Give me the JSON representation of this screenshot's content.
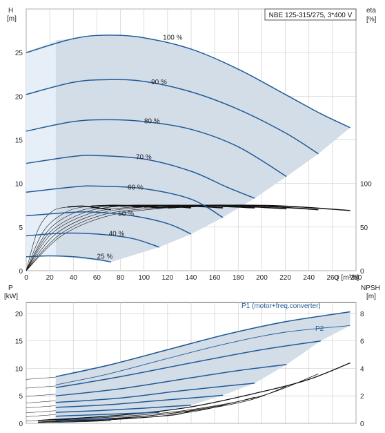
{
  "chart_data": [
    {
      "type": "line",
      "title": "NBE 125-315/275, 3*400 V",
      "left_axis": {
        "label_line1": "H",
        "label_line2": "[m]",
        "range": [
          0,
          30
        ],
        "ticks": [
          0,
          5,
          10,
          15,
          20,
          25
        ]
      },
      "right_axis": {
        "label_line1": "eta",
        "label_line2": "[%]",
        "range": [
          0,
          100
        ],
        "ticks": [
          0,
          50,
          100
        ]
      },
      "x_axis": {
        "label": "Q [m³/h]",
        "range": [
          0,
          280
        ],
        "ticks": [
          0,
          20,
          40,
          60,
          80,
          100,
          120,
          140,
          160,
          180,
          200,
          220,
          240,
          260,
          280
        ]
      },
      "grid": true,
      "head_curves": [
        {
          "name": "100 %",
          "x": [
            0,
            40,
            70,
            100,
            140,
            180,
            220,
            250,
            275
          ],
          "y": [
            25.0,
            26.6,
            27.0,
            26.7,
            25.4,
            23.1,
            20.2,
            18.0,
            16.4
          ]
        },
        {
          "name": "90 %",
          "x": [
            0,
            40,
            70,
            100,
            140,
            180,
            220,
            248
          ],
          "y": [
            20.2,
            21.6,
            21.9,
            21.7,
            20.5,
            18.5,
            15.8,
            13.4
          ]
        },
        {
          "name": "80 %",
          "x": [
            0,
            40,
            70,
            100,
            140,
            180,
            221
          ],
          "y": [
            16.0,
            17.1,
            17.3,
            17.1,
            16.2,
            14.2,
            10.8
          ]
        },
        {
          "name": "70 %",
          "x": [
            0,
            40,
            60,
            100,
            140,
            170,
            194
          ],
          "y": [
            12.3,
            13.1,
            13.2,
            12.8,
            11.4,
            9.6,
            8.3
          ]
        },
        {
          "name": "60 %",
          "x": [
            0,
            40,
            60,
            100,
            140,
            167
          ],
          "y": [
            9.0,
            9.6,
            9.7,
            9.4,
            8.2,
            6.1
          ]
        },
        {
          "name": "50 %",
          "x": [
            0,
            40,
            60,
            90,
            120,
            140
          ],
          "y": [
            6.3,
            6.7,
            6.7,
            6.3,
            5.4,
            4.2
          ]
        },
        {
          "name": "40 %",
          "x": [
            0,
            30,
            60,
            90,
            113
          ],
          "y": [
            4.0,
            4.3,
            4.2,
            3.7,
            2.7
          ]
        },
        {
          "name": "25 %",
          "x": [
            0,
            20,
            40,
            60,
            72
          ],
          "y": [
            1.6,
            1.7,
            1.6,
            1.3,
            1.0
          ]
        }
      ],
      "efficiency_curves": [
        {
          "x": [
            0,
            30,
            70,
            120,
            170,
            220,
            275
          ],
          "y": [
            0,
            40,
            63,
            72,
            75,
            74,
            69
          ]
        },
        {
          "x": [
            0,
            28,
            65,
            110,
            155,
            200,
            248
          ],
          "y": [
            0,
            41,
            64,
            72,
            75,
            74,
            70
          ]
        },
        {
          "x": [
            0,
            25,
            60,
            100,
            140,
            180,
            221
          ],
          "y": [
            0,
            42,
            65,
            73,
            75,
            74,
            71
          ]
        },
        {
          "x": [
            0,
            22,
            55,
            90,
            125,
            160,
            194
          ],
          "y": [
            0,
            43,
            66,
            73,
            75,
            74,
            72
          ]
        },
        {
          "x": [
            0,
            20,
            50,
            80,
            110,
            140,
            167
          ],
          "y": [
            0,
            44,
            67,
            74,
            75,
            74,
            72
          ]
        },
        {
          "x": [
            0,
            18,
            42,
            70,
            95,
            120,
            140
          ],
          "y": [
            0,
            45,
            67,
            74,
            75,
            74,
            72
          ]
        },
        {
          "x": [
            0,
            15,
            35,
            55,
            75,
            95,
            113
          ],
          "y": [
            0,
            46,
            68,
            74,
            75,
            74,
            72
          ]
        },
        {
          "x": [
            0,
            10,
            22,
            35,
            48,
            60,
            72
          ],
          "y": [
            0,
            47,
            68,
            73,
            74,
            72,
            70
          ]
        }
      ],
      "curve_labels": [
        "100 %",
        "90 %",
        "80 %",
        "70 %",
        "60 %",
        "50 %",
        "40 %",
        "25 %"
      ]
    },
    {
      "type": "line",
      "left_axis": {
        "label_line1": "P",
        "label_line2": "[kW]",
        "range": [
          0,
          22
        ],
        "ticks": [
          0,
          5,
          10,
          15,
          20
        ]
      },
      "right_axis": {
        "label_line1": "NPSH",
        "label_line2": "[m]",
        "range": [
          0,
          8.8
        ],
        "ticks": [
          0,
          2,
          4,
          6,
          8
        ]
      },
      "x_axis": {
        "range": [
          0,
          280
        ],
        "ticks": [
          0,
          20,
          40,
          60,
          80,
          100,
          120,
          140,
          160,
          180,
          200,
          220,
          240,
          260,
          280
        ]
      },
      "grid": true,
      "series": [
        {
          "name": "P1 (motor+freq.converter)",
          "x": [
            25,
            70,
            120,
            170,
            220,
            275
          ],
          "y": [
            8.5,
            10.6,
            13.4,
            16.2,
            18.5,
            20.3
          ]
        },
        {
          "name": "P2",
          "x": [
            25,
            70,
            120,
            170,
            220,
            275
          ],
          "y": [
            7.0,
            9.0,
            11.8,
            14.5,
            16.6,
            17.8
          ]
        }
      ],
      "power_curves": [
        {
          "x": [
            25,
            80,
            140,
            200,
            250
          ],
          "y": [
            6.5,
            8.5,
            11.0,
            13.4,
            15.0
          ]
        },
        {
          "x": [
            25,
            80,
            140,
            180,
            221
          ],
          "y": [
            5.0,
            6.3,
            8.3,
            9.6,
            10.7
          ]
        },
        {
          "x": [
            25,
            80,
            130,
            170,
            194
          ],
          "y": [
            3.8,
            4.6,
            5.9,
            6.8,
            7.3
          ]
        },
        {
          "x": [
            25,
            70,
            110,
            145,
            167
          ],
          "y": [
            2.9,
            3.4,
            4.1,
            4.7,
            5.1
          ]
        },
        {
          "x": [
            25,
            60,
            95,
            125,
            140
          ],
          "y": [
            2.0,
            2.3,
            2.7,
            3.1,
            3.3
          ]
        },
        {
          "x": [
            25,
            50,
            75,
            100,
            113
          ],
          "y": [
            1.3,
            1.5,
            1.7,
            1.9,
            2.0
          ]
        },
        {
          "x": [
            25,
            40,
            55,
            72
          ],
          "y": [
            0.5,
            0.6,
            0.7,
            0.8
          ]
        }
      ],
      "npsh_curves": [
        {
          "x": [
            10,
            80,
            140,
            200,
            240,
            275
          ],
          "y": [
            0.2,
            0.6,
            1.2,
            2.3,
            3.2,
            4.4
          ]
        },
        {
          "x": [
            10,
            80,
            140,
            200,
            248
          ],
          "y": [
            0.2,
            0.5,
            1.0,
            2.0,
            3.6
          ]
        },
        {
          "x": [
            10,
            80,
            140,
            190,
            221
          ],
          "y": [
            0.2,
            0.4,
            0.9,
            1.7,
            2.7
          ]
        },
        {
          "x": [
            10,
            70,
            120,
            165,
            194
          ],
          "y": [
            0.1,
            0.3,
            0.7,
            1.3,
            1.9
          ]
        },
        {
          "x": [
            10,
            70,
            110,
            145,
            167
          ],
          "y": [
            0.1,
            0.3,
            0.5,
            0.9,
            1.3
          ]
        },
        {
          "x": [
            10,
            60,
            95,
            125,
            140
          ],
          "y": [
            0.1,
            0.2,
            0.4,
            0.6,
            0.9
          ]
        },
        {
          "x": [
            10,
            50,
            80,
            113
          ],
          "y": [
            0.1,
            0.2,
            0.3,
            0.5
          ]
        },
        {
          "x": [
            10,
            40,
            72
          ],
          "y": [
            0.05,
            0.1,
            0.2
          ]
        }
      ]
    }
  ],
  "colors": {
    "accent": "#1f5a96",
    "envelope": "#d3dde8",
    "envelope_light": "#e6eef7",
    "grid": "#cfcfcf",
    "black": "#111111"
  }
}
